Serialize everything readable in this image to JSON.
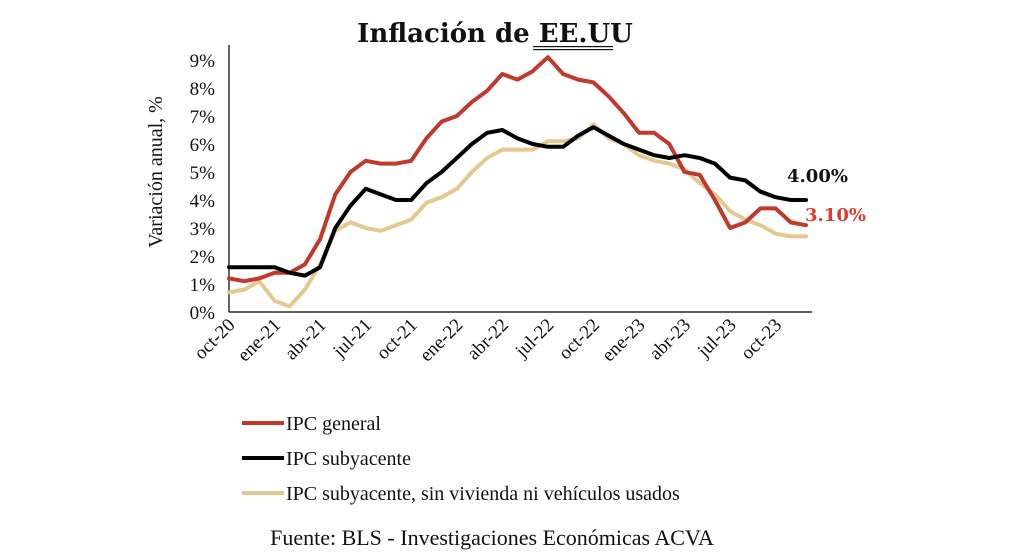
{
  "chart_data": {
    "type": "line",
    "title": "Inflación de EE.UU",
    "ylabel": "Variación anual, %",
    "xlabel": "",
    "ylim": [
      0,
      9
    ],
    "y_ticks": [
      "0%",
      "1%",
      "2%",
      "3%",
      "4%",
      "5%",
      "6%",
      "7%",
      "8%",
      "9%"
    ],
    "x_tick_labels": [
      "oct-20",
      "ene-21",
      "abr-21",
      "jul-21",
      "oct-21",
      "ene-22",
      "abr-22",
      "jul-22",
      "oct-22",
      "ene-23",
      "abr-23",
      "jul-23",
      "oct-23"
    ],
    "x": [
      "oct-20",
      "nov-20",
      "dic-20",
      "ene-21",
      "feb-21",
      "mar-21",
      "abr-21",
      "may-21",
      "jun-21",
      "jul-21",
      "ago-21",
      "sep-21",
      "oct-21",
      "nov-21",
      "dic-21",
      "ene-22",
      "feb-22",
      "mar-22",
      "abr-22",
      "may-22",
      "jun-22",
      "jul-22",
      "ago-22",
      "sep-22",
      "oct-22",
      "nov-22",
      "dic-22",
      "ene-23",
      "feb-23",
      "mar-23",
      "abr-23",
      "may-23",
      "jun-23",
      "jul-23",
      "ago-23",
      "sep-23",
      "oct-23",
      "nov-23",
      "dic-23"
    ],
    "series": [
      {
        "name": "IPC general",
        "color": "#c0392b",
        "values": [
          1.2,
          1.1,
          1.2,
          1.4,
          1.4,
          1.7,
          2.6,
          4.2,
          5.0,
          5.4,
          5.3,
          5.3,
          5.4,
          6.2,
          6.8,
          7.0,
          7.5,
          7.9,
          8.5,
          8.3,
          8.6,
          9.1,
          8.5,
          8.3,
          8.2,
          7.7,
          7.1,
          6.4,
          6.4,
          6.0,
          5.0,
          4.9,
          4.0,
          3.0,
          3.2,
          3.7,
          3.7,
          3.2,
          3.1
        ],
        "end_label": "3.10%"
      },
      {
        "name": "IPC subyacente",
        "color": "#000000",
        "values": [
          1.6,
          1.6,
          1.6,
          1.6,
          1.4,
          1.3,
          1.6,
          3.0,
          3.8,
          4.4,
          4.2,
          4.0,
          4.0,
          4.6,
          5.0,
          5.5,
          6.0,
          6.4,
          6.5,
          6.2,
          6.0,
          5.9,
          5.9,
          6.3,
          6.6,
          6.3,
          6.0,
          5.8,
          5.6,
          5.5,
          5.6,
          5.5,
          5.3,
          4.8,
          4.7,
          4.3,
          4.1,
          4.0,
          4.0
        ],
        "end_label": "4.00%"
      },
      {
        "name": "IPC subyacente, sin vivienda ni vehículos usados",
        "color": "#e5c88f",
        "values": [
          0.7,
          0.8,
          1.1,
          0.4,
          0.2,
          0.8,
          1.7,
          2.9,
          3.2,
          3.0,
          2.9,
          3.1,
          3.3,
          3.9,
          4.1,
          4.4,
          5.0,
          5.5,
          5.8,
          5.8,
          5.8,
          6.1,
          6.1,
          6.2,
          6.7,
          6.2,
          6.0,
          5.6,
          5.4,
          5.3,
          5.1,
          4.6,
          4.2,
          3.6,
          3.3,
          3.1,
          2.8,
          2.7,
          2.7
        ]
      }
    ],
    "source": "Fuente: BLS - Investigaciones Económicas ACVA"
  }
}
